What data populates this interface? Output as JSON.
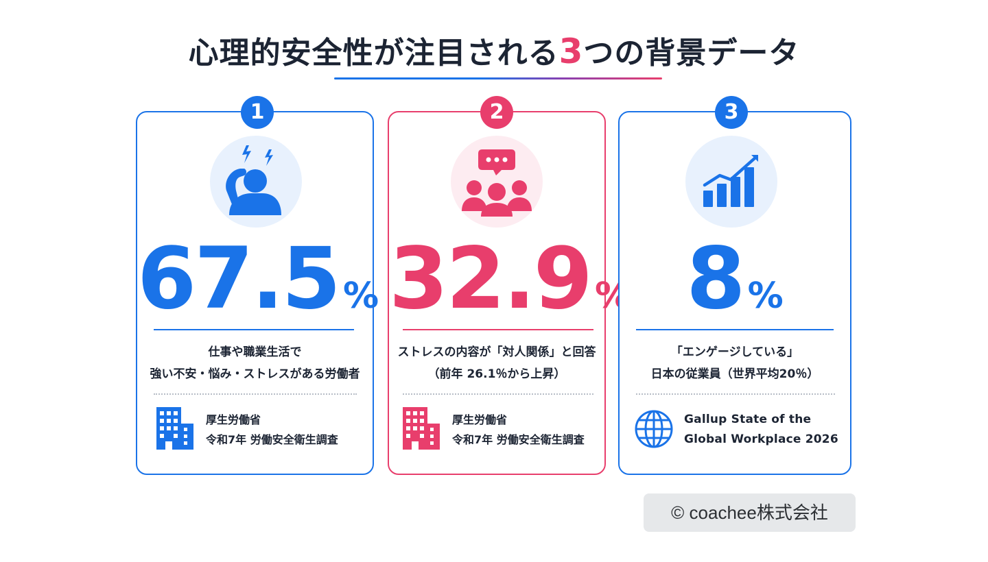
{
  "title": {
    "before": "心理的安全性が注目される",
    "number": "3",
    "after": "つの背景データ"
  },
  "colors": {
    "blue": "#1a73e8",
    "pink": "#e83e6c",
    "dark": "#1c2433"
  },
  "cards": [
    {
      "number": "1",
      "icon": "stressed-person-icon",
      "value": "67.5",
      "unit": "%",
      "description": [
        "仕事や職業生活で",
        "強い不安・悩み・ストレスがある労働者"
      ],
      "source_icon": "building-icon",
      "source": [
        "厚生労働省",
        "令和7年 労働安全衛生調査"
      ]
    },
    {
      "number": "2",
      "icon": "group-chat-icon",
      "value": "32.9",
      "unit": "%",
      "description": [
        "ストレスの内容が「対人関係」と回答",
        "（前年 26.1％から上昇）"
      ],
      "source_icon": "building-icon",
      "source": [
        "厚生労働省",
        "令和7年 労働安全衛生調査"
      ]
    },
    {
      "number": "3",
      "icon": "growth-chart-icon",
      "value": "8",
      "unit": "%",
      "description": [
        "「エンゲージしている」",
        "日本の従業員（世界平均20％）"
      ],
      "source_icon": "globe-icon",
      "source": [
        "Gallup State of the",
        "Global Workplace 2026"
      ]
    }
  ],
  "copyright": "© coachee株式会社"
}
